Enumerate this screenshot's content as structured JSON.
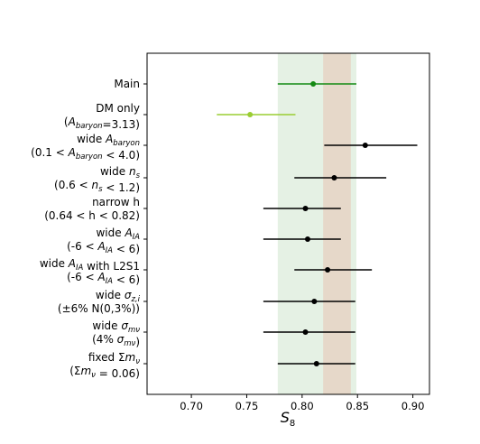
{
  "chart_data": {
    "type": "scatter",
    "subtype": "horizontal-errorbar",
    "xlabel": "S_8",
    "xlim": [
      0.66,
      0.915
    ],
    "xticks": [
      "0.70",
      "0.75",
      "0.80",
      "0.85",
      "0.90"
    ],
    "bands": [
      {
        "name": "green-band",
        "x0": 0.778,
        "x1": 0.849,
        "color": "#e5f1e4"
      },
      {
        "name": "tan-band",
        "x0": 0.819,
        "x1": 0.844,
        "color": "#e6d8c9"
      }
    ],
    "categories": [
      {
        "lines": [
          "Main"
        ],
        "value": 0.81,
        "err_low": 0.778,
        "err_high": 0.849,
        "color": "#138a13"
      },
      {
        "lines": [
          "DM only",
          "(A_baryon=3.13)"
        ],
        "value": 0.753,
        "err_low": 0.723,
        "err_high": 0.794,
        "color": "#9acd32"
      },
      {
        "lines": [
          "wide A_baryon",
          "(0.1 < A_baryon < 4.0)"
        ],
        "value": 0.857,
        "err_low": 0.82,
        "err_high": 0.904,
        "color": "#000000"
      },
      {
        "lines": [
          "wide n_s",
          "(0.6 < n_s < 1.2)"
        ],
        "value": 0.829,
        "err_low": 0.793,
        "err_high": 0.876,
        "color": "#000000"
      },
      {
        "lines": [
          "narrow h",
          "(0.64 < h < 0.82)"
        ],
        "value": 0.803,
        "err_low": 0.765,
        "err_high": 0.835,
        "color": "#000000"
      },
      {
        "lines": [
          "wide A_IA",
          "(-6 < A_IA < 6)"
        ],
        "value": 0.805,
        "err_low": 0.765,
        "err_high": 0.835,
        "color": "#000000"
      },
      {
        "lines": [
          "wide A_IA with L2S1",
          "(-6 < A_IA < 6)"
        ],
        "value": 0.823,
        "err_low": 0.793,
        "err_high": 0.863,
        "color": "#000000"
      },
      {
        "lines": [
          "wide σ_z,i",
          "(±6% N(0,3%))"
        ],
        "value": 0.811,
        "err_low": 0.765,
        "err_high": 0.848,
        "color": "#000000"
      },
      {
        "lines": [
          "wide σ_mν",
          "(4% σ_mν)"
        ],
        "value": 0.803,
        "err_low": 0.765,
        "err_high": 0.848,
        "color": "#000000"
      },
      {
        "lines": [
          "fixed Σm_ν",
          "(Σm_ν = 0.06)"
        ],
        "value": 0.813,
        "err_low": 0.778,
        "err_high": 0.848,
        "color": "#000000"
      }
    ]
  }
}
